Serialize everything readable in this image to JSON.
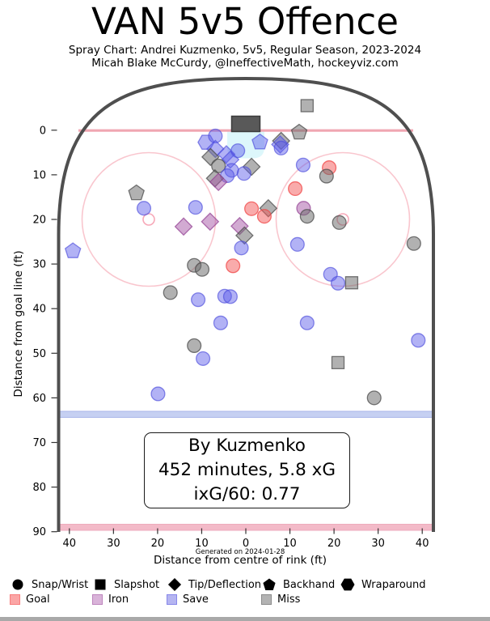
{
  "header": {
    "title": "VAN 5v5 Offence",
    "subtitle": "Spray Chart: Andrei Kuzmenko, 5v5, Regular Season, 2023-2024",
    "byline": "Micah Blake McCurdy, @IneffectiveMath, hockeyviz.com"
  },
  "infobox": {
    "line1": "By Kuzmenko",
    "line2": "452 minutes, 5.8 xG",
    "line3": "ixG/60: 0.77"
  },
  "axes": {
    "xlabel": "Distance from centre of rink (ft)",
    "ylabel": "Distance from goal line (ft)",
    "generated": "Generated on 2024-01-28",
    "x_tick_values": [
      -40,
      -30,
      -20,
      -10,
      0,
      10,
      20,
      30,
      40
    ],
    "x_tick_labels": [
      "40",
      "30",
      "20",
      "10",
      "0",
      "10",
      "20",
      "30",
      "40"
    ],
    "y_tick_values": [
      0,
      10,
      20,
      30,
      40,
      50,
      60,
      70,
      80,
      90
    ],
    "y_tick_labels": [
      "0",
      "10",
      "20",
      "30",
      "40",
      "50",
      "60",
      "70",
      "80",
      "90"
    ]
  },
  "legend": {
    "shapes": [
      {
        "shape": "circle",
        "label": "Snap/Wrist"
      },
      {
        "shape": "square",
        "label": "Slapshot"
      },
      {
        "shape": "diamond",
        "label": "Tip/Deflection"
      },
      {
        "shape": "pentagon",
        "label": "Backhand"
      },
      {
        "shape": "hexagon",
        "label": "Wraparound"
      }
    ],
    "results": [
      {
        "key": "goal",
        "label": "Goal"
      },
      {
        "key": "iron",
        "label": "Iron"
      },
      {
        "key": "save",
        "label": "Save"
      },
      {
        "key": "miss",
        "label": "Miss"
      }
    ]
  },
  "colors": {
    "goal": {
      "fill": "rgba(244,88,88,0.5)",
      "stroke": "rgba(240,70,70,0.75)",
      "legend_fill": "#fba6a6",
      "legend_stroke": "#f87d7d"
    },
    "iron": {
      "fill": "rgba(165,85,165,0.5)",
      "stroke": "rgba(150,70,150,0.75)",
      "legend_fill": "#d9b3d9",
      "legend_stroke": "#bd85bd"
    },
    "save": {
      "fill": "rgba(95,95,235,0.48)",
      "stroke": "rgba(75,75,220,0.65)",
      "legend_fill": "#b5b5f1",
      "legend_stroke": "#8787e9"
    },
    "miss": {
      "fill": "rgba(105,105,105,0.52)",
      "stroke": "rgba(75,75,75,0.75)",
      "legend_fill": "#b3b3b3",
      "legend_stroke": "#8c8c8c"
    }
  },
  "rink": {
    "boards": "#4f4f4f",
    "goal_line": "#f0a6b2",
    "net_fill": "#595959",
    "net_stroke": "#3a3a3a",
    "crease": "#ddf7fb",
    "faceoff_circle": "#f9c6ce",
    "faceoff_dot": "#f7a8b8",
    "blue_line_fill": "#c6d0f2",
    "blue_line_edge": "#a9b6e9",
    "red_line_fill": "#f3bac8",
    "red_line_edge": "#eeabbc"
  },
  "chart_data": {
    "type": "scatter",
    "title": "VAN 5v5 Offence",
    "subtitle": "Spray Chart: Andrei Kuzmenko, 5v5, Regular Season, 2023-2024",
    "xlabel": "Distance from centre of rink (ft)",
    "ylabel": "Distance from goal line (ft)",
    "x_range": [
      -42.5,
      42.5
    ],
    "y_range": [
      0,
      90
    ],
    "shape_meaning": {
      "circle": "Snap/Wrist",
      "square": "Slapshot",
      "diamond": "Tip/Deflection",
      "pentagon": "Backhand",
      "hexagon": "Wraparound"
    },
    "color_meaning": {
      "goal": "Goal",
      "iron": "Iron",
      "save": "Save",
      "miss": "Miss"
    },
    "points": [
      {
        "x": 13.9,
        "y": -5.5,
        "shot": "square",
        "result": "miss"
      },
      {
        "x": 12.1,
        "y": 0.5,
        "shot": "pentagon",
        "result": "miss"
      },
      {
        "x": -9.0,
        "y": 2.7,
        "shot": "hexagon",
        "result": "save"
      },
      {
        "x": -6.9,
        "y": 1.3,
        "shot": "circle",
        "result": "save"
      },
      {
        "x": 3.2,
        "y": 2.7,
        "shot": "pentagon",
        "result": "save"
      },
      {
        "x": 8.0,
        "y": 2.4,
        "shot": "diamond",
        "result": "miss"
      },
      {
        "x": 7.8,
        "y": 3.2,
        "shot": "diamond",
        "result": "save"
      },
      {
        "x": 8.0,
        "y": 4.0,
        "shot": "circle",
        "result": "save"
      },
      {
        "x": -6.9,
        "y": 4.2,
        "shot": "diamond",
        "result": "save"
      },
      {
        "x": -4.4,
        "y": 5.4,
        "shot": "diamond",
        "result": "save"
      },
      {
        "x": -1.8,
        "y": 4.6,
        "shot": "circle",
        "result": "save"
      },
      {
        "x": -8.0,
        "y": 6.0,
        "shot": "diamond",
        "result": "miss"
      },
      {
        "x": -3.5,
        "y": 6.6,
        "shot": "diamond",
        "result": "save"
      },
      {
        "x": -6.2,
        "y": 8.0,
        "shot": "circle",
        "result": "miss"
      },
      {
        "x": -3.2,
        "y": 9.0,
        "shot": "circle",
        "result": "save"
      },
      {
        "x": 1.3,
        "y": 8.2,
        "shot": "diamond",
        "result": "miss"
      },
      {
        "x": -0.4,
        "y": 9.7,
        "shot": "circle",
        "result": "save"
      },
      {
        "x": -4.2,
        "y": 10.2,
        "shot": "circle",
        "result": "save"
      },
      {
        "x": -7.0,
        "y": 10.8,
        "shot": "diamond",
        "result": "miss"
      },
      {
        "x": -6.2,
        "y": 11.6,
        "shot": "diamond",
        "result": "iron"
      },
      {
        "x": 13.0,
        "y": 7.8,
        "shot": "circle",
        "result": "save"
      },
      {
        "x": 18.9,
        "y": 8.4,
        "shot": "circle",
        "result": "goal"
      },
      {
        "x": 18.3,
        "y": 10.3,
        "shot": "circle",
        "result": "miss"
      },
      {
        "x": 11.2,
        "y": 13.1,
        "shot": "circle",
        "result": "goal"
      },
      {
        "x": -24.8,
        "y": 14.1,
        "shot": "pentagon",
        "result": "miss"
      },
      {
        "x": -23.1,
        "y": 17.5,
        "shot": "circle",
        "result": "save"
      },
      {
        "x": -11.4,
        "y": 17.3,
        "shot": "circle",
        "result": "save"
      },
      {
        "x": -14.1,
        "y": 21.6,
        "shot": "diamond",
        "result": "iron"
      },
      {
        "x": -8.1,
        "y": 20.5,
        "shot": "diamond",
        "result": "iron"
      },
      {
        "x": 1.3,
        "y": 17.6,
        "shot": "circle",
        "result": "goal"
      },
      {
        "x": 5.1,
        "y": 17.5,
        "shot": "diamond",
        "result": "miss"
      },
      {
        "x": 4.2,
        "y": 19.3,
        "shot": "circle",
        "result": "goal"
      },
      {
        "x": -1.4,
        "y": 21.5,
        "shot": "diamond",
        "result": "iron"
      },
      {
        "x": -0.3,
        "y": 23.6,
        "shot": "diamond",
        "result": "miss"
      },
      {
        "x": 13.1,
        "y": 17.5,
        "shot": "circle",
        "result": "iron"
      },
      {
        "x": 13.9,
        "y": 19.3,
        "shot": "circle",
        "result": "miss"
      },
      {
        "x": 21.2,
        "y": 20.7,
        "shot": "circle",
        "result": "miss"
      },
      {
        "x": -1.0,
        "y": 26.4,
        "shot": "circle",
        "result": "save"
      },
      {
        "x": 11.7,
        "y": 25.6,
        "shot": "circle",
        "result": "save"
      },
      {
        "x": 38.1,
        "y": 25.4,
        "shot": "circle",
        "result": "miss"
      },
      {
        "x": -39.2,
        "y": 27.1,
        "shot": "pentagon",
        "result": "save"
      },
      {
        "x": -11.7,
        "y": 30.3,
        "shot": "circle",
        "result": "miss"
      },
      {
        "x": -9.9,
        "y": 31.2,
        "shot": "circle",
        "result": "miss"
      },
      {
        "x": -2.9,
        "y": 30.4,
        "shot": "circle",
        "result": "goal"
      },
      {
        "x": -17.1,
        "y": 36.4,
        "shot": "circle",
        "result": "miss"
      },
      {
        "x": -10.8,
        "y": 38.0,
        "shot": "circle",
        "result": "save"
      },
      {
        "x": -4.8,
        "y": 37.2,
        "shot": "circle",
        "result": "save"
      },
      {
        "x": -3.5,
        "y": 37.3,
        "shot": "circle",
        "result": "save"
      },
      {
        "x": 19.2,
        "y": 32.3,
        "shot": "circle",
        "result": "save"
      },
      {
        "x": 20.9,
        "y": 34.3,
        "shot": "circle",
        "result": "save"
      },
      {
        "x": 24.0,
        "y": 34.2,
        "shot": "square",
        "result": "miss"
      },
      {
        "x": -5.7,
        "y": 43.2,
        "shot": "circle",
        "result": "save"
      },
      {
        "x": 13.9,
        "y": 43.2,
        "shot": "circle",
        "result": "save"
      },
      {
        "x": -11.7,
        "y": 48.3,
        "shot": "circle",
        "result": "miss"
      },
      {
        "x": -9.7,
        "y": 51.2,
        "shot": "circle",
        "result": "save"
      },
      {
        "x": 39.1,
        "y": 47.1,
        "shot": "circle",
        "result": "save"
      },
      {
        "x": 20.9,
        "y": 52.1,
        "shot": "square",
        "result": "miss"
      },
      {
        "x": -19.9,
        "y": 59.1,
        "shot": "circle",
        "result": "save"
      },
      {
        "x": 29.1,
        "y": 60.0,
        "shot": "circle",
        "result": "miss"
      }
    ]
  }
}
